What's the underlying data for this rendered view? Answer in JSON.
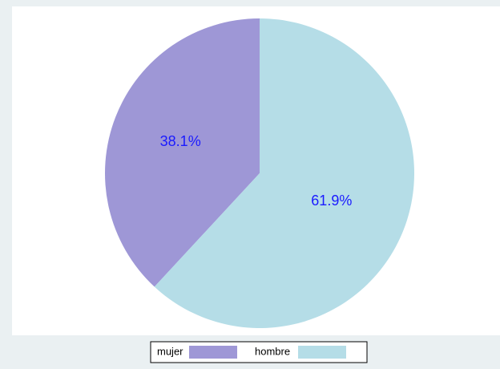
{
  "chart_data": {
    "type": "pie",
    "categories": [
      "mujer",
      "hombre"
    ],
    "values": [
      38.1,
      61.9
    ],
    "value_labels": [
      "38.1%",
      "61.9%"
    ],
    "colors": [
      "#9e97d6",
      "#b5dde7"
    ],
    "label_color": "#1a1aff",
    "legend": "bottom"
  }
}
